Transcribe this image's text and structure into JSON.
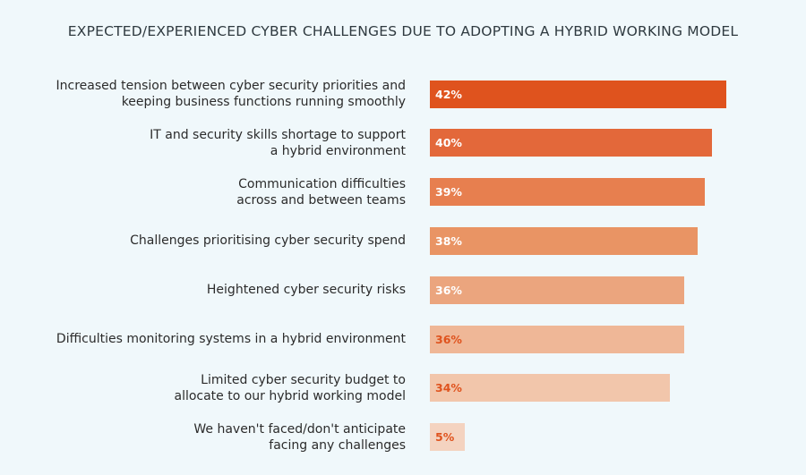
{
  "chart_data": {
    "type": "bar",
    "orientation": "horizontal",
    "title": "EXPECTED/EXPERIENCED CYBER CHALLENGES DUE TO ADOPTING A HYBRID WORKING MODEL",
    "categories": [
      [
        "Increased tension between cyber security priorities and",
        "keeping business functions running smoothly"
      ],
      [
        "IT and security skills shortage to support",
        "a hybrid environment"
      ],
      [
        "Communication difficulties",
        "across and between teams"
      ],
      [
        "Challenges prioritising cyber security spend"
      ],
      [
        "Heightened cyber security risks"
      ],
      [
        "Difficulties monitoring systems in a hybrid environment"
      ],
      [
        "Limited cyber security budget to",
        "allocate to our hybrid working model"
      ],
      [
        "We haven't faced/don't anticipate",
        "facing any challenges"
      ]
    ],
    "values": [
      42,
      40,
      39,
      38,
      36,
      36,
      34,
      5
    ],
    "value_labels": [
      "42%",
      "40%",
      "39%",
      "38%",
      "36%",
      "36%",
      "34%",
      "5%"
    ],
    "xlim": [
      0,
      42
    ],
    "bar_colors": [
      "#df531e",
      "#e3683a",
      "#e77f4f",
      "#e99464",
      "#eba57e",
      "#efb797",
      "#f2c6ab",
      "#f4d3c0"
    ],
    "label_colors": [
      "#ffffff",
      "#ffffff",
      "#ffffff",
      "#ffffff",
      "#ffffff",
      "#df531e",
      "#df531e",
      "#df531e"
    ],
    "grid": false,
    "legend": "none"
  }
}
